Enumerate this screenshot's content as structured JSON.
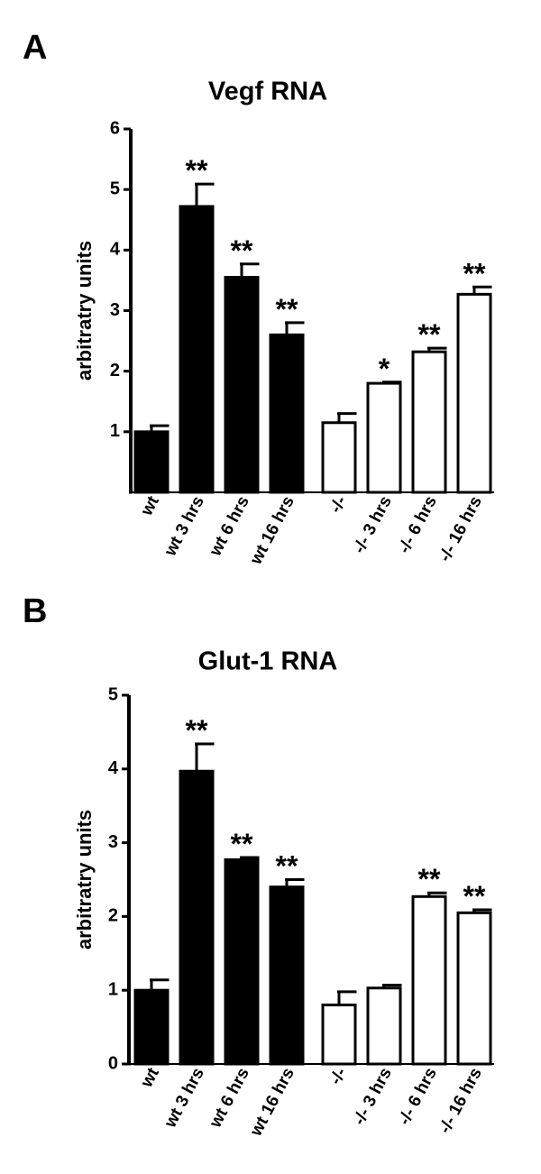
{
  "chart_data": [
    {
      "type": "bar",
      "panel": "A",
      "title": "Vegf RNA",
      "ylabel": "arbitratry units",
      "categories": [
        "wt",
        "wt 3 hrs",
        "wt 6 hrs",
        "wt 16 hrs",
        "-/-",
        "-/- 3 hrs",
        "-/- 6 hrs",
        "-/- 16 hrs"
      ],
      "values": [
        1.0,
        4.72,
        3.55,
        2.6,
        1.15,
        1.8,
        2.32,
        3.27
      ],
      "errors": [
        0.1,
        0.37,
        0.22,
        0.2,
        0.15,
        0.02,
        0.06,
        0.12
      ],
      "annotations": [
        null,
        "**",
        "**",
        "**",
        null,
        "*",
        "**",
        "**"
      ],
      "colors": [
        "#000000",
        "#000000",
        "#000000",
        "#000000",
        "#ffffff",
        "#ffffff",
        "#ffffff",
        "#ffffff"
      ],
      "ylim": [
        0,
        6
      ],
      "yticks": [
        1,
        2,
        3,
        4,
        5,
        6
      ]
    },
    {
      "type": "bar",
      "panel": "B",
      "title": "Glut-1 RNA",
      "ylabel": "arbitratry units",
      "categories": [
        "wt",
        "wt 3 hrs",
        "wt 6 hrs",
        "wt 16 hrs",
        "-/-",
        "-/- 3 hrs",
        "-/- 6 hrs",
        "-/- 16 hrs"
      ],
      "values": [
        1.0,
        3.97,
        2.77,
        2.4,
        0.8,
        1.03,
        2.27,
        2.05
      ],
      "errors": [
        0.14,
        0.37,
        0.03,
        0.1,
        0.18,
        0.04,
        0.05,
        0.04
      ],
      "annotations": [
        null,
        "**",
        "**",
        "**",
        null,
        null,
        "**",
        "**"
      ],
      "colors": [
        "#000000",
        "#000000",
        "#000000",
        "#000000",
        "#ffffff",
        "#ffffff",
        "#ffffff",
        "#ffffff"
      ],
      "ylim": [
        0,
        5
      ],
      "yticks": [
        0,
        1,
        2,
        3,
        4,
        5
      ]
    }
  ]
}
